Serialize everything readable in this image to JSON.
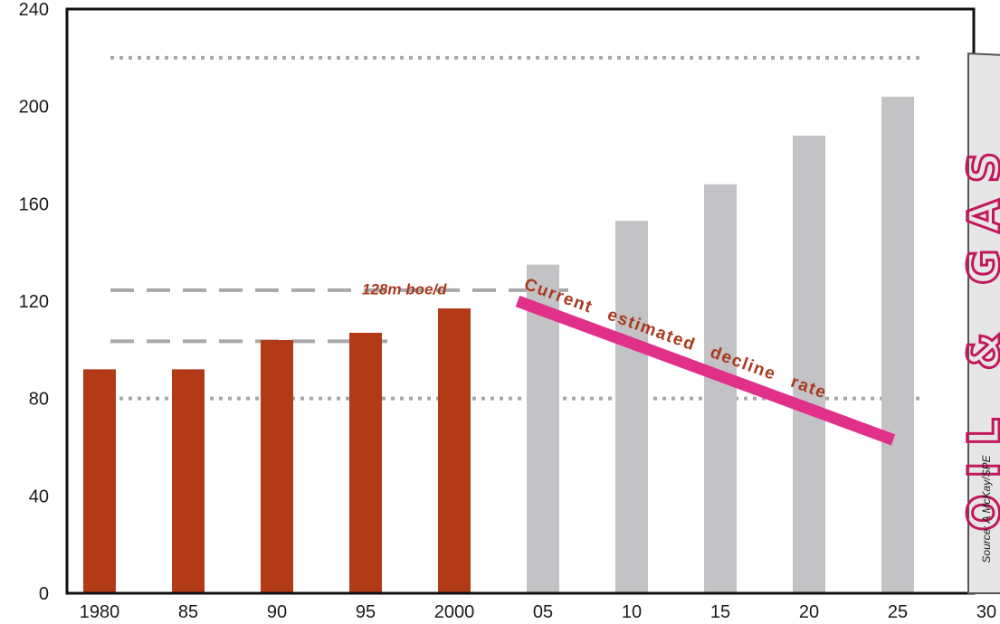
{
  "chart_data": {
    "type": "bar",
    "categories": [
      "1980",
      "85",
      "90",
      "95",
      "2000",
      "05",
      "10",
      "15",
      "20",
      "25",
      "30"
    ],
    "values": [
      92,
      92,
      104,
      107,
      117,
      135,
      153,
      168,
      188,
      204,
      null
    ],
    "ylim": [
      0,
      240
    ],
    "yticks": [
      "0",
      "40",
      "80",
      "120",
      "160",
      "200",
      "240"
    ],
    "ytick_values": [
      0,
      40,
      80,
      120,
      160,
      200,
      240
    ],
    "historical_color": "#b23a17",
    "forecast_color": "#c3c3c5",
    "historical_count": 5,
    "reference_lines": [
      {
        "y": 220,
        "style": "dotted",
        "from": "1980",
        "to": "25"
      },
      {
        "y": 124.5,
        "style": "dashed",
        "from": "1980",
        "to": "05"
      },
      {
        "y": 103.5,
        "style": "dashed",
        "from": "1980",
        "to": "95"
      },
      {
        "y": 80,
        "style": "dotted",
        "from": "1980",
        "to": "25"
      }
    ],
    "annotation": {
      "text": "128m boe/d",
      "color": "#a83a1e"
    },
    "decline_line": {
      "label": "Current estimated decline rate",
      "color": "#e0308a",
      "start": {
        "x": "05",
        "y": 120
      },
      "end": {
        "x": "25",
        "y": 63
      }
    },
    "source": "Source: A McKay/SPE",
    "grid": false,
    "legend": "none"
  },
  "logo": {
    "text": "OIL & GAS",
    "color": "#c2185b"
  }
}
